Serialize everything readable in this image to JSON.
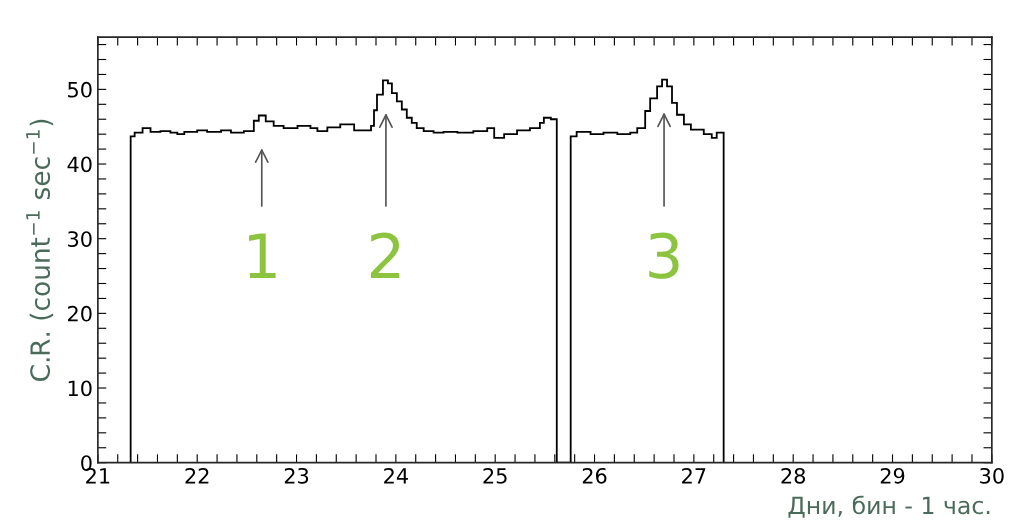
{
  "chart_data": {
    "type": "histogram",
    "xlabel": "Дни, бин - 1 час.",
    "ylabel": "C.R. (count$^{−1}$ sec$^{−1}$)",
    "color": "#000000",
    "bins": [
      21.33,
      21.37,
      21.45,
      21.53,
      21.63,
      21.73,
      21.8,
      21.87,
      22.0,
      22.1,
      22.24,
      22.34,
      22.47,
      22.57,
      22.62,
      22.69,
      22.77,
      22.87,
      23.01,
      23.14,
      23.21,
      23.31,
      23.44,
      23.58,
      23.66,
      23.75,
      23.78,
      23.81,
      23.87,
      23.92,
      23.96,
      24.01,
      24.06,
      24.11,
      24.16,
      24.21,
      24.28,
      24.38,
      24.48,
      24.62,
      24.78,
      24.92,
      24.99,
      25.09,
      25.22,
      25.35,
      25.45,
      25.49,
      25.56,
      25.62,
      25.76,
      25.82,
      25.96,
      26.09,
      26.23,
      26.36,
      26.43,
      26.51,
      26.56,
      26.63,
      26.68,
      26.73,
      26.78,
      26.83,
      26.9,
      26.97,
      27.1,
      27.18,
      27.23,
      27.3
    ],
    "values": [
      43.7,
      44.2,
      44.8,
      44.3,
      44.4,
      44.2,
      44.0,
      44.3,
      44.5,
      44.3,
      44.5,
      44.2,
      44.4,
      45.8,
      46.5,
      45.7,
      45.1,
      44.8,
      45.1,
      44.8,
      44.4,
      44.9,
      45.3,
      44.5,
      44.5,
      45.1,
      47.2,
      49.3,
      51.2,
      50.8,
      49.5,
      48.4,
      47.3,
      46.2,
      45.5,
      44.8,
      44.4,
      44.2,
      44.3,
      44.2,
      44.4,
      44.8,
      43.5,
      44.0,
      44.5,
      44.8,
      45.5,
      46.2,
      46.0,
      0,
      43.7,
      44.3,
      44.0,
      44.2,
      44.0,
      44.2,
      44.8,
      47.1,
      48.8,
      50.4,
      51.3,
      50.4,
      48.2,
      46.6,
      45.3,
      44.6,
      44.0,
      43.5,
      44.2
    ],
    "xlim": [
      21,
      30
    ],
    "ylim": [
      0,
      57
    ],
    "xticks": [
      21,
      {
        "value": 21.2,
        "label": null
      },
      {
        "value": 21.4,
        "label": null
      },
      {
        "value": 21.6,
        "label": null
      },
      {
        "value": 21.8,
        "label": null
      },
      22,
      {
        "value": 22.2,
        "label": null
      },
      {
        "value": 22.4,
        "label": null
      },
      {
        "value": 22.6,
        "label": null
      },
      {
        "value": 22.8,
        "label": null
      },
      23,
      {
        "value": 23.2,
        "label": null
      },
      {
        "value": 23.4,
        "label": null
      },
      {
        "value": 23.6,
        "label": null
      },
      {
        "value": 23.8,
        "label": null
      },
      24,
      {
        "value": 24.2,
        "label": null
      },
      {
        "value": 24.4,
        "label": null
      },
      {
        "value": 24.6,
        "label": null
      },
      {
        "value": 24.8,
        "label": null
      },
      25,
      {
        "value": 25.2,
        "label": null
      },
      {
        "value": 25.4,
        "label": null
      },
      {
        "value": 25.6,
        "label": null
      },
      {
        "value": 25.8,
        "label": null
      },
      26,
      {
        "value": 26.2,
        "label": null
      },
      {
        "value": 26.4,
        "label": null
      },
      {
        "value": 26.6,
        "label": null
      },
      {
        "value": 26.8,
        "label": null
      },
      27,
      {
        "value": 27.2,
        "label": null
      },
      {
        "value": 27.4,
        "label": null
      },
      {
        "value": 27.6,
        "label": null
      },
      {
        "value": 27.8,
        "label": null
      },
      28,
      {
        "value": 28.2,
        "label": null
      },
      {
        "value": 28.4,
        "label": null
      },
      {
        "value": 28.6,
        "label": null
      },
      {
        "value": 28.8,
        "label": null
      },
      29,
      {
        "value": 29.2,
        "label": null
      },
      {
        "value": 29.4,
        "label": null
      },
      {
        "value": 29.6,
        "label": null
      },
      {
        "value": 29.8,
        "label": null
      },
      30
    ],
    "yticks": [
      0,
      {
        "value": 2,
        "label": null
      },
      {
        "value": 4,
        "label": null
      },
      {
        "value": 6,
        "label": null
      },
      {
        "value": 8,
        "label": null
      },
      10,
      {
        "value": 12,
        "label": null
      },
      {
        "value": 14,
        "label": null
      },
      {
        "value": 16,
        "label": null
      },
      {
        "value": 18,
        "label": null
      },
      20,
      {
        "value": 22,
        "label": null
      },
      {
        "value": 24,
        "label": null
      },
      {
        "value": 26,
        "label": null
      },
      {
        "value": 28,
        "label": null
      },
      30,
      {
        "value": 32,
        "label": null
      },
      {
        "value": 34,
        "label": null
      },
      {
        "value": 36,
        "label": null
      },
      {
        "value": 38,
        "label": null
      },
      40,
      {
        "value": 42,
        "label": null
      },
      {
        "value": 44,
        "label": null
      },
      {
        "value": 46,
        "label": null
      },
      {
        "value": 48,
        "label": null
      },
      50,
      {
        "value": 52,
        "label": null
      },
      {
        "value": 54,
        "label": null
      },
      {
        "value": 56,
        "label": null
      }
    ],
    "annotations": [
      {
        "text": "1",
        "x": 22.65,
        "y": 46.5
      },
      {
        "text": "2",
        "x": 23.9,
        "y": 51.2
      },
      {
        "text": "3",
        "x": 26.7,
        "y": 51.3
      }
    ],
    "grid": false,
    "legend": false
  }
}
